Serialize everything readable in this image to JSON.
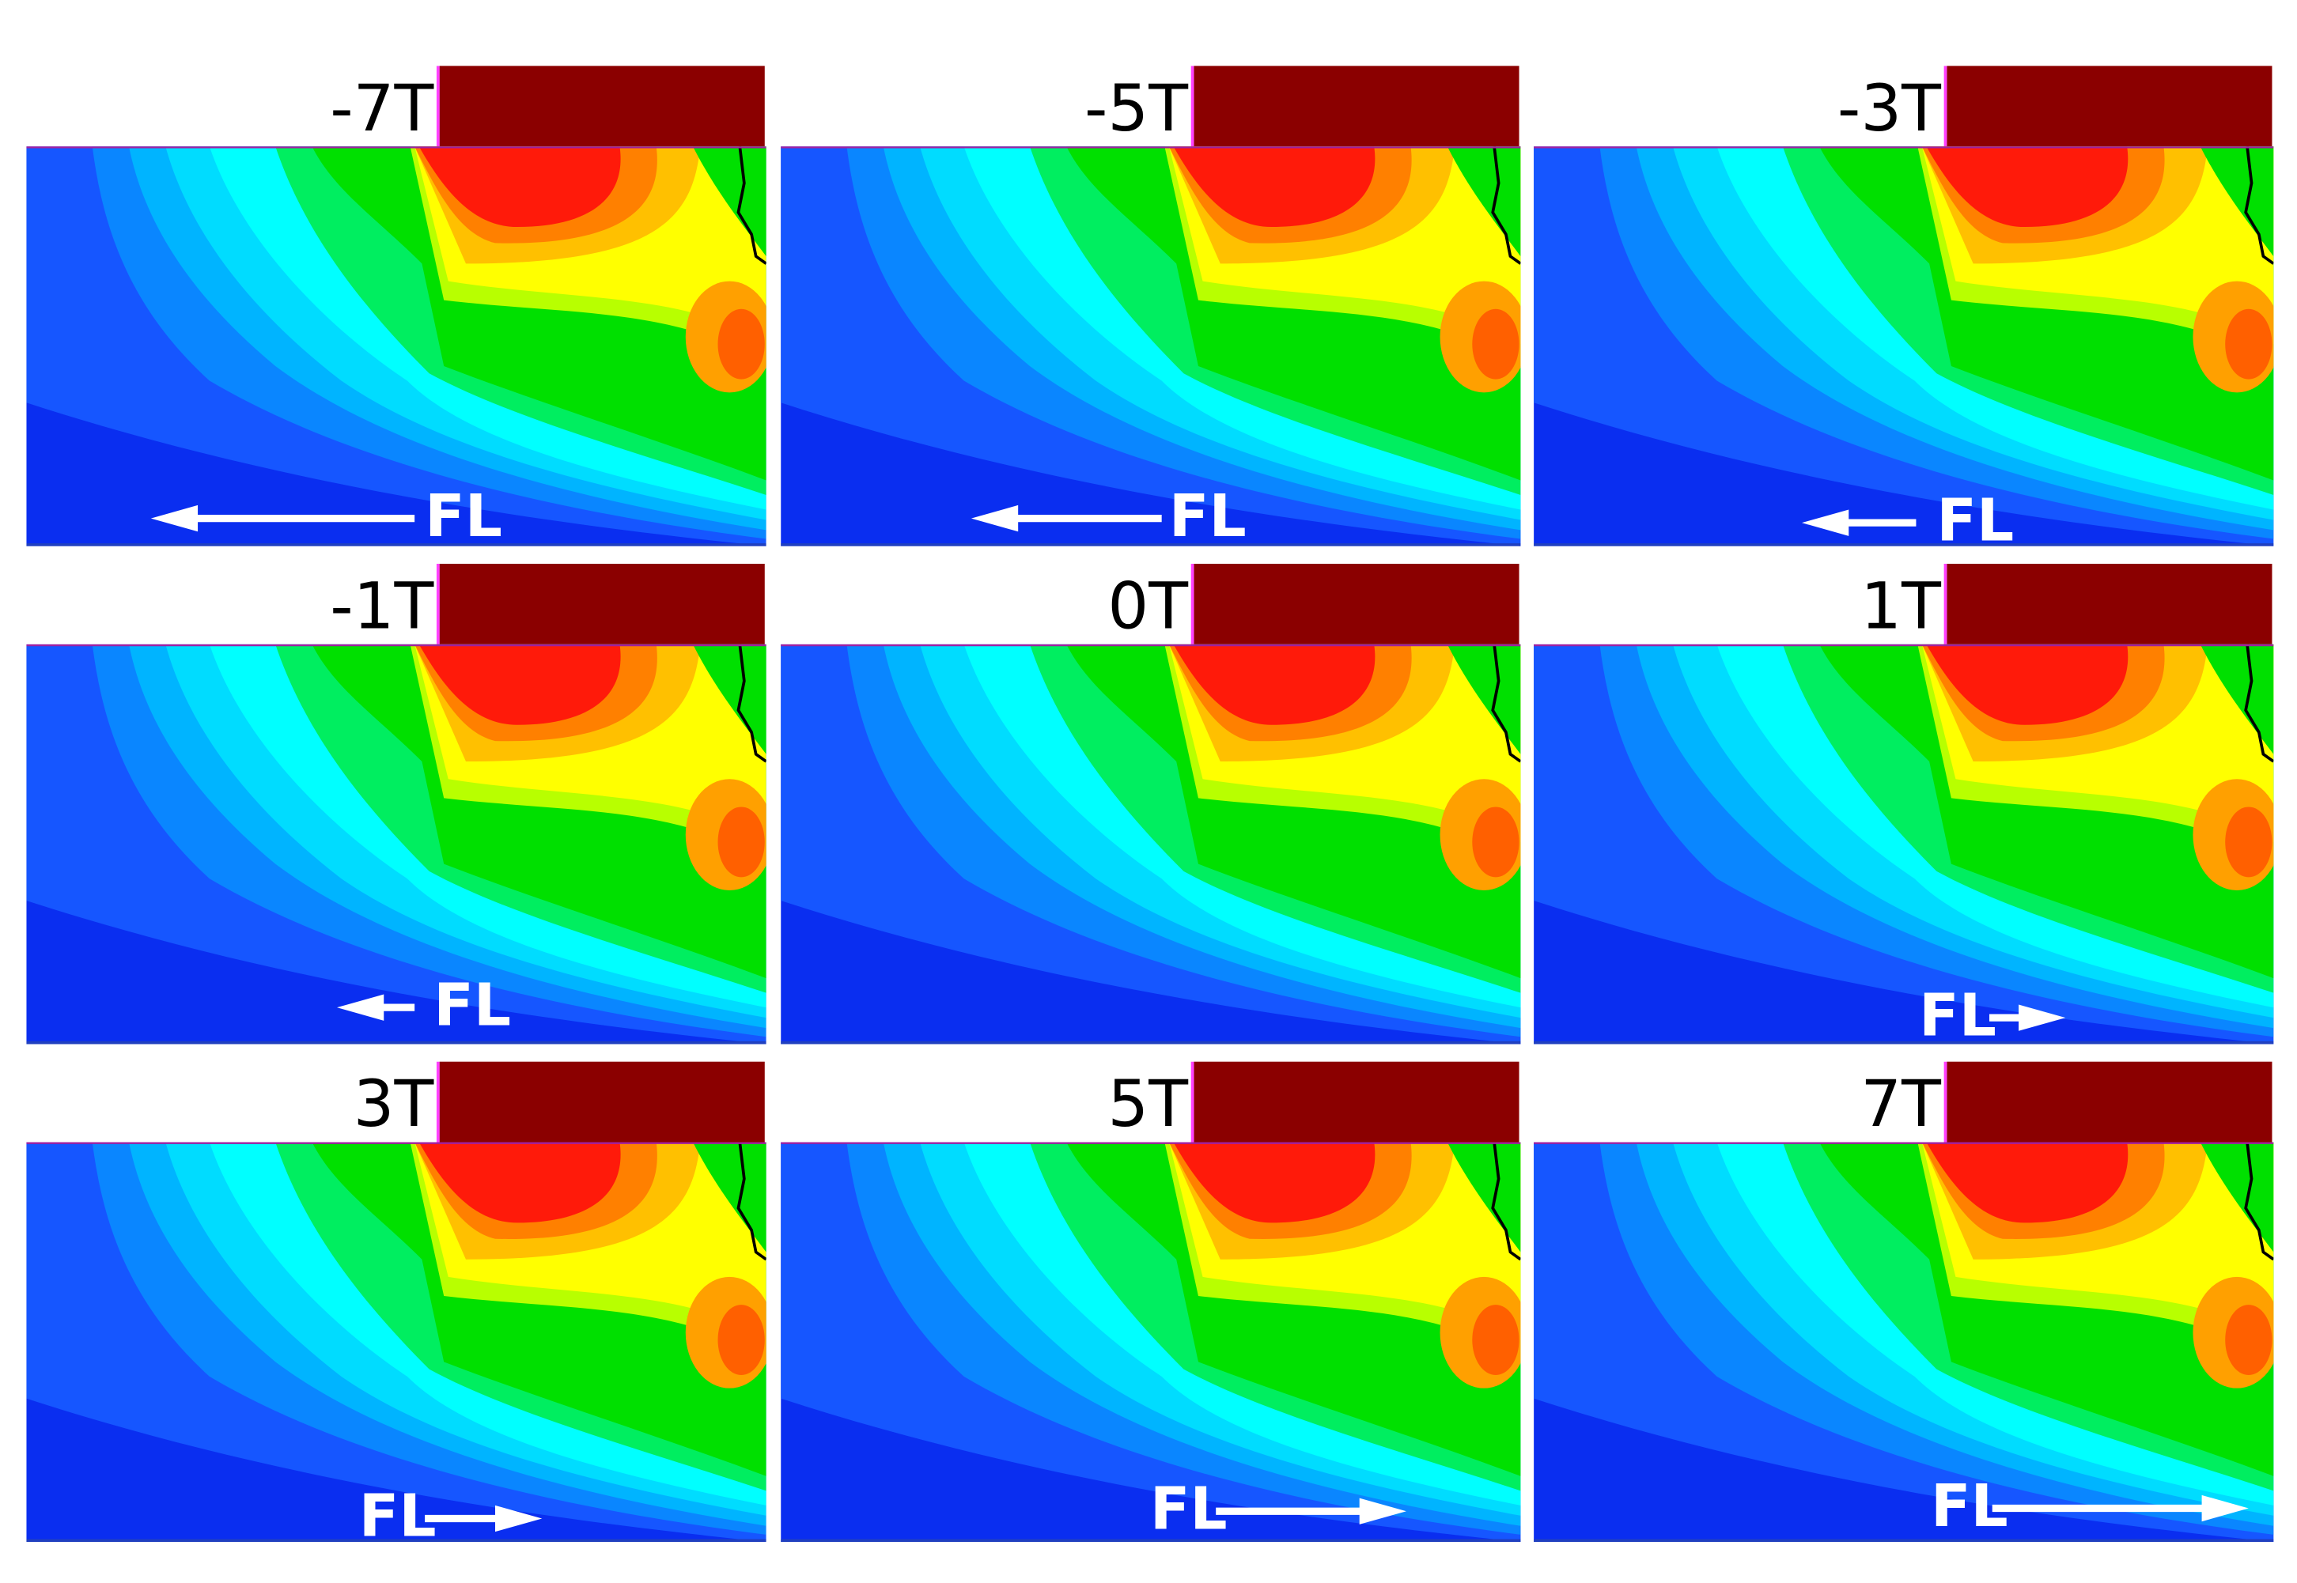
{
  "panels": [
    {
      "label": "-7T",
      "arrow_label": "FL"
    },
    {
      "label": "-5T",
      "arrow_label": "FL"
    },
    {
      "label": "-3T",
      "arrow_label": "FL"
    },
    {
      "label": "-1T",
      "arrow_label": "FL"
    },
    {
      "label": "0T"
    },
    {
      "label": "1T",
      "arrow_label": "FL"
    },
    {
      "label": "3T",
      "arrow_label": "FL"
    },
    {
      "label": "5T",
      "arrow_label": "FL"
    },
    {
      "label": "7T",
      "arrow_label": "FL"
    }
  ]
}
